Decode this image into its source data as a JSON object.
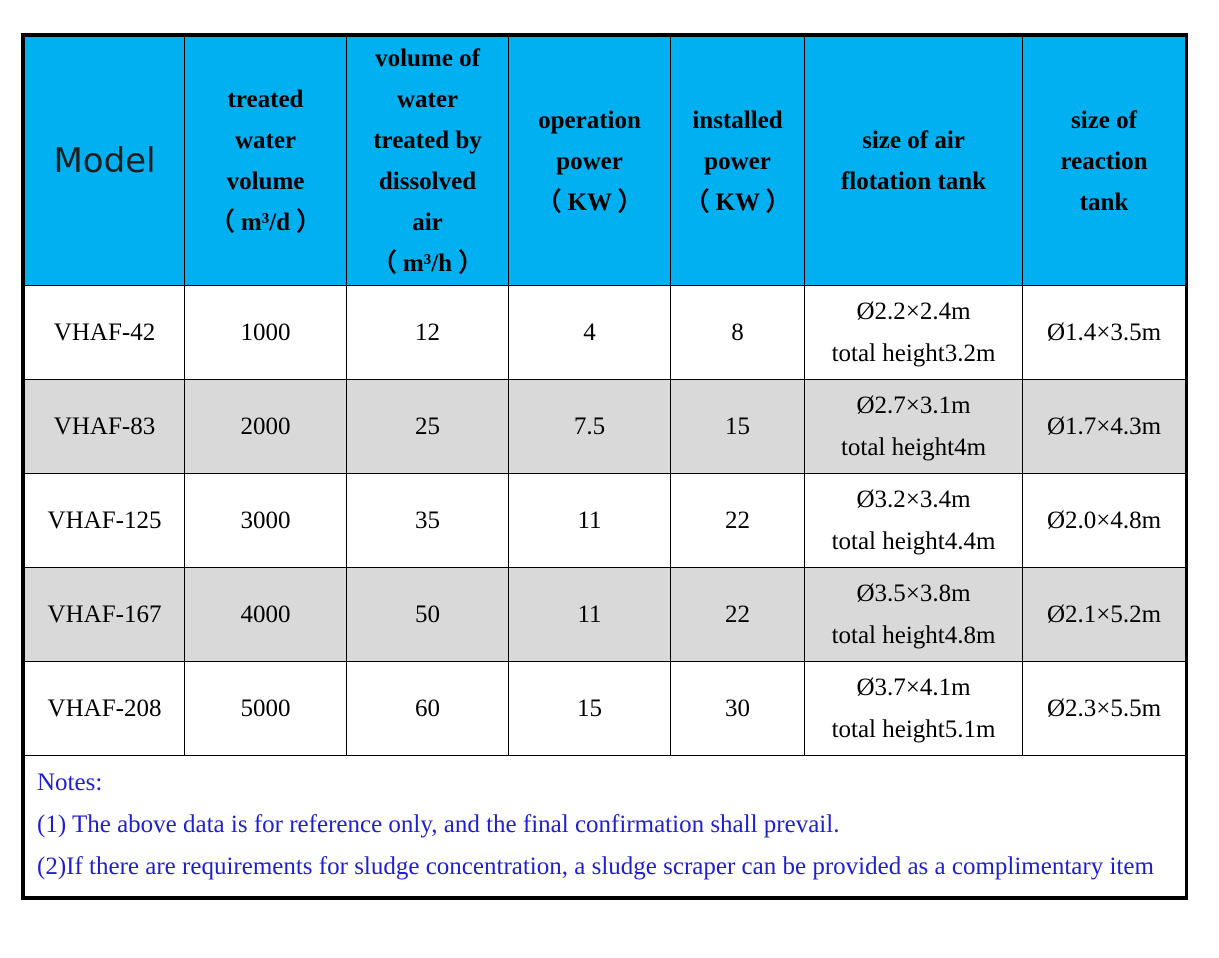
{
  "table": {
    "headers": [
      [
        "Model"
      ],
      [
        "treated",
        "water",
        "volume",
        "（ m³/d ）"
      ],
      [
        "volume of",
        "water",
        "treated by",
        "dissolved",
        "air",
        "（ m³/h ）"
      ],
      [
        "operation",
        "power",
        "（ KW ）"
      ],
      [
        "installed",
        "power",
        "（ KW ）"
      ],
      [
        "size of air",
        "flotation tank"
      ],
      [
        "size of",
        "reaction",
        "tank"
      ]
    ],
    "rows": [
      {
        "model": "VHAF-42",
        "treated": "1000",
        "dissolved": "12",
        "operation": "4",
        "installed": "8",
        "flotation_size": "Ø2.2×2.4m",
        "flotation_height": "total height3.2m",
        "reaction": "Ø1.4×3.5m"
      },
      {
        "model": "VHAF-83",
        "treated": "2000",
        "dissolved": "25",
        "operation": "7.5",
        "installed": "15",
        "flotation_size": "Ø2.7×3.1m",
        "flotation_height": "total height4m",
        "reaction": "Ø1.7×4.3m"
      },
      {
        "model": "VHAF-125",
        "treated": "3000",
        "dissolved": "35",
        "operation": "11",
        "installed": "22",
        "flotation_size": "Ø3.2×3.4m",
        "flotation_height": "total height4.4m",
        "reaction": "Ø2.0×4.8m"
      },
      {
        "model": "VHAF-167",
        "treated": "4000",
        "dissolved": "50",
        "operation": "11",
        "installed": "22",
        "flotation_size": "Ø3.5×3.8m",
        "flotation_height": "total height4.8m",
        "reaction": "Ø2.1×5.2m"
      },
      {
        "model": "VHAF-208",
        "treated": "5000",
        "dissolved": "60",
        "operation": "15",
        "installed": "30",
        "flotation_size": "Ø3.7×4.1m",
        "flotation_height": "total height5.1m",
        "reaction": "Ø2.3×5.5m"
      }
    ]
  },
  "notes": {
    "title": "Notes:",
    "line1": "(1) The above data is for reference only, and the final confirmation shall prevail.",
    "line2": "(2)If there are requirements for sludge concentration, a sludge scraper can be provided as a complimentary item"
  },
  "colors": {
    "header_bg": "#00b0f0",
    "shade_row_bg": "#d9d9d9",
    "notes_text": "#1f1fd0"
  }
}
